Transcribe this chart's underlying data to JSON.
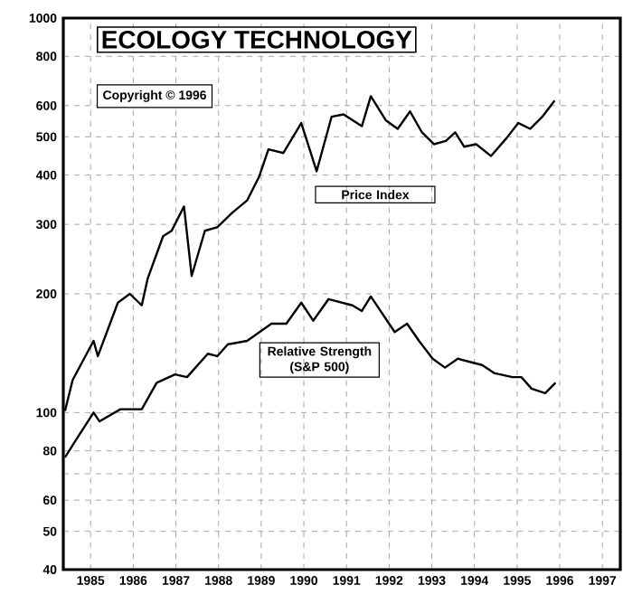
{
  "chart_data": {
    "type": "line",
    "title": "ECOLOGY TECHNOLOGY",
    "annotations": [
      "Copyright © 1996"
    ],
    "log": "y",
    "grid": true,
    "legend": false,
    "marker": "none",
    "line_style": "solid",
    "xlim": [
      1984.86,
      1997.92
    ],
    "ylim": [
      40,
      1000
    ],
    "xticks": [
      {
        "value": 1985.5,
        "label": "1985"
      },
      {
        "value": 1986.5,
        "label": "1986"
      },
      {
        "value": 1987.5,
        "label": "1987"
      },
      {
        "value": 1988.5,
        "label": "1988"
      },
      {
        "value": 1989.5,
        "label": "1989"
      },
      {
        "value": 1990.5,
        "label": "1990"
      },
      {
        "value": 1991.5,
        "label": "1991"
      },
      {
        "value": 1992.5,
        "label": "1992"
      },
      {
        "value": 1993.5,
        "label": "1993"
      },
      {
        "value": 1994.5,
        "label": "1994"
      },
      {
        "value": 1995.5,
        "label": "1995"
      },
      {
        "value": 1996.5,
        "label": "1996"
      },
      {
        "value": 1997.5,
        "label": "1997"
      }
    ],
    "yticks": [
      40,
      50,
      60,
      {
        "value": 70,
        "label": null
      },
      80,
      100,
      200,
      300,
      400,
      500,
      600,
      800,
      1000
    ],
    "series": [
      {
        "name": "Price Index",
        "color": "#000000",
        "x": [
          1984.9,
          1985.08,
          1985.57,
          1985.67,
          1986.14,
          1986.42,
          1986.7,
          1986.84,
          1987.2,
          1987.4,
          1987.69,
          1987.87,
          1988.18,
          1988.47,
          1988.82,
          1989.17,
          1989.45,
          1989.67,
          1990.02,
          1990.44,
          1990.8,
          1991.15,
          1991.43,
          1991.86,
          1992.07,
          1992.42,
          1992.7,
          1992.99,
          1993.27,
          1993.55,
          1993.83,
          1994.05,
          1994.26,
          1994.54,
          1994.89,
          1995.25,
          1995.53,
          1995.81,
          1996.09,
          1996.38
        ],
        "values": [
          101,
          121,
          152,
          139,
          190,
          200,
          187,
          219,
          280,
          289,
          333,
          222,
          289,
          295,
          321,
          345,
          396,
          465,
          455,
          542,
          409,
          562,
          570,
          532,
          634,
          551,
          524,
          580,
          513,
          479,
          488,
          513,
          472,
          479,
          447,
          496,
          542,
          524,
          562,
          618
        ]
      },
      {
        "name": "Relative Strength (S&P 500)",
        "color": "#000000",
        "x": [
          1984.9,
          1985.15,
          1985.57,
          1985.71,
          1986.2,
          1986.7,
          1987.05,
          1987.48,
          1987.76,
          1988.25,
          1988.47,
          1988.72,
          1989.17,
          1989.74,
          1990.09,
          1990.44,
          1990.72,
          1991.08,
          1991.64,
          1991.86,
          1992.07,
          1992.63,
          1992.92,
          1993.2,
          1993.52,
          1993.81,
          1994.11,
          1994.68,
          1994.96,
          1995.39,
          1995.6,
          1995.84,
          1996.16,
          1996.4
        ],
        "values": [
          77,
          85,
          100,
          95,
          102,
          102,
          119,
          125,
          123,
          141,
          139,
          149,
          152,
          168,
          168,
          190,
          171,
          194,
          187,
          181,
          197,
          160,
          168,
          152,
          137,
          130,
          137,
          132,
          126,
          123,
          123,
          115,
          112,
          119
        ]
      }
    ]
  }
}
